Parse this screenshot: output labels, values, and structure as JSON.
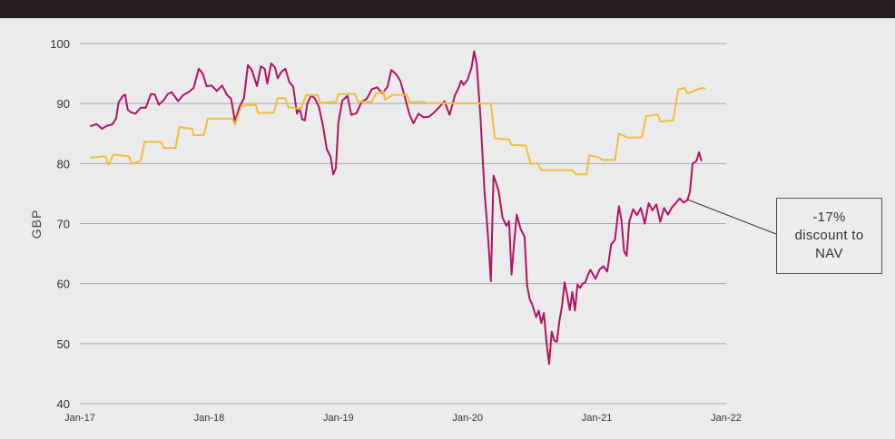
{
  "chart_data": {
    "type": "line",
    "title": "",
    "xlabel": "",
    "ylabel": "GBP",
    "ylim": [
      40,
      100
    ],
    "yticks": [
      "40",
      "50",
      "60",
      "70",
      "80",
      "90",
      "100"
    ],
    "xlim": [
      2017.0,
      2022.0
    ],
    "xticks": [
      {
        "label": "Jan-17",
        "x": 2017.0
      },
      {
        "label": "Jan-18",
        "x": 2018.0
      },
      {
        "label": "Jan-19",
        "x": 2019.0
      },
      {
        "label": "Jan-20",
        "x": 2020.0
      },
      {
        "label": "Jan-21",
        "x": 2021.0
      },
      {
        "label": "Jan-22",
        "x": 2022.0
      }
    ],
    "grid": "horizontal",
    "series": [
      {
        "color": "#b5135f",
        "points": [
          [
            2017.08,
            86.2
          ],
          [
            2017.13,
            86.6
          ],
          [
            2017.17,
            85.8
          ],
          [
            2017.21,
            86.3
          ],
          [
            2017.25,
            86.5
          ],
          [
            2017.28,
            87.5
          ],
          [
            2017.3,
            90.2
          ],
          [
            2017.33,
            91.2
          ],
          [
            2017.35,
            91.5
          ],
          [
            2017.37,
            89.0
          ],
          [
            2017.39,
            88.6
          ],
          [
            2017.43,
            88.3
          ],
          [
            2017.47,
            89.3
          ],
          [
            2017.51,
            89.3
          ],
          [
            2017.55,
            91.6
          ],
          [
            2017.58,
            91.5
          ],
          [
            2017.61,
            89.8
          ],
          [
            2017.65,
            90.6
          ],
          [
            2017.68,
            91.6
          ],
          [
            2017.71,
            91.9
          ],
          [
            2017.76,
            90.4
          ],
          [
            2017.8,
            91.4
          ],
          [
            2017.84,
            91.9
          ],
          [
            2017.88,
            92.6
          ],
          [
            2017.92,
            95.8
          ],
          [
            2017.95,
            95.0
          ],
          [
            2017.98,
            92.9
          ],
          [
            2018.02,
            93.0
          ],
          [
            2018.06,
            92.1
          ],
          [
            2018.1,
            93.0
          ],
          [
            2018.14,
            91.4
          ],
          [
            2018.17,
            90.8
          ],
          [
            2018.2,
            87.0
          ],
          [
            2018.23,
            89.2
          ],
          [
            2018.27,
            90.9
          ],
          [
            2018.3,
            96.4
          ],
          [
            2018.33,
            95.6
          ],
          [
            2018.35,
            94.3
          ],
          [
            2018.37,
            92.9
          ],
          [
            2018.4,
            96.2
          ],
          [
            2018.43,
            95.8
          ],
          [
            2018.45,
            93.3
          ],
          [
            2018.48,
            96.7
          ],
          [
            2018.51,
            96.0
          ],
          [
            2018.53,
            94.2
          ],
          [
            2018.56,
            95.3
          ],
          [
            2018.59,
            95.8
          ],
          [
            2018.62,
            93.6
          ],
          [
            2018.65,
            92.8
          ],
          [
            2018.68,
            88.3
          ],
          [
            2018.7,
            89.2
          ],
          [
            2018.72,
            87.4
          ],
          [
            2018.74,
            87.2
          ],
          [
            2018.76,
            90.0
          ],
          [
            2018.79,
            91.4
          ],
          [
            2018.82,
            90.8
          ],
          [
            2018.85,
            89.4
          ],
          [
            2018.88,
            86.4
          ],
          [
            2018.91,
            82.4
          ],
          [
            2018.94,
            81.1
          ],
          [
            2018.96,
            78.2
          ],
          [
            2018.98,
            79.2
          ],
          [
            2019.0,
            86.8
          ],
          [
            2019.03,
            90.5
          ],
          [
            2019.07,
            91.3
          ],
          [
            2019.1,
            88.1
          ],
          [
            2019.14,
            88.4
          ],
          [
            2019.18,
            90.3
          ],
          [
            2019.22,
            90.8
          ],
          [
            2019.26,
            92.4
          ],
          [
            2019.3,
            92.7
          ],
          [
            2019.34,
            91.7
          ],
          [
            2019.38,
            92.8
          ],
          [
            2019.41,
            95.6
          ],
          [
            2019.45,
            94.8
          ],
          [
            2019.48,
            93.7
          ],
          [
            2019.51,
            91.4
          ],
          [
            2019.55,
            88.2
          ],
          [
            2019.58,
            86.7
          ],
          [
            2019.62,
            88.3
          ],
          [
            2019.66,
            87.7
          ],
          [
            2019.7,
            87.8
          ],
          [
            2019.74,
            88.5
          ],
          [
            2019.78,
            89.4
          ],
          [
            2019.82,
            90.4
          ],
          [
            2019.86,
            88.1
          ],
          [
            2019.9,
            91.3
          ],
          [
            2019.93,
            92.6
          ],
          [
            2019.95,
            93.8
          ],
          [
            2019.97,
            93.1
          ],
          [
            2020.0,
            94.0
          ],
          [
            2020.03,
            96.0
          ],
          [
            2020.05,
            98.7
          ],
          [
            2020.07,
            96.6
          ],
          [
            2020.1,
            87.6
          ],
          [
            2020.13,
            75.5
          ],
          [
            2020.15,
            70.0
          ],
          [
            2020.16,
            67.0
          ],
          [
            2020.18,
            60.4
          ],
          [
            2020.2,
            78.0
          ],
          [
            2020.22,
            76.8
          ],
          [
            2020.24,
            75.4
          ],
          [
            2020.27,
            71.0
          ],
          [
            2020.3,
            69.6
          ],
          [
            2020.32,
            70.4
          ],
          [
            2020.34,
            61.5
          ],
          [
            2020.36,
            67.0
          ],
          [
            2020.38,
            71.5
          ],
          [
            2020.41,
            69.1
          ],
          [
            2020.44,
            67.8
          ],
          [
            2020.46,
            59.7
          ],
          [
            2020.48,
            57.4
          ],
          [
            2020.5,
            56.5
          ],
          [
            2020.53,
            54.4
          ],
          [
            2020.55,
            55.5
          ],
          [
            2020.57,
            53.4
          ],
          [
            2020.59,
            55.1
          ],
          [
            2020.61,
            50.2
          ],
          [
            2020.63,
            46.6
          ],
          [
            2020.65,
            52.0
          ],
          [
            2020.67,
            50.5
          ],
          [
            2020.69,
            50.3
          ],
          [
            2020.71,
            53.8
          ],
          [
            2020.73,
            56.3
          ],
          [
            2020.75,
            60.2
          ],
          [
            2020.77,
            58.1
          ],
          [
            2020.79,
            55.6
          ],
          [
            2020.81,
            58.6
          ],
          [
            2020.83,
            55.5
          ],
          [
            2020.85,
            59.8
          ],
          [
            2020.87,
            59.3
          ],
          [
            2020.89,
            60.0
          ],
          [
            2020.91,
            60.2
          ],
          [
            2020.93,
            61.4
          ],
          [
            2020.95,
            62.3
          ],
          [
            2020.97,
            61.5
          ],
          [
            2020.99,
            60.8
          ],
          [
            2021.02,
            62.3
          ],
          [
            2021.05,
            62.9
          ],
          [
            2021.08,
            62.0
          ],
          [
            2021.11,
            66.5
          ],
          [
            2021.14,
            67.3
          ],
          [
            2021.17,
            72.9
          ],
          [
            2021.19,
            70.5
          ],
          [
            2021.21,
            65.4
          ],
          [
            2021.23,
            64.6
          ],
          [
            2021.25,
            70.3
          ],
          [
            2021.28,
            72.4
          ],
          [
            2021.31,
            71.4
          ],
          [
            2021.34,
            72.6
          ],
          [
            2021.37,
            70.0
          ],
          [
            2021.4,
            73.4
          ],
          [
            2021.43,
            72.2
          ],
          [
            2021.46,
            73.2
          ],
          [
            2021.49,
            70.3
          ],
          [
            2021.52,
            72.6
          ],
          [
            2021.55,
            71.5
          ],
          [
            2021.58,
            72.7
          ],
          [
            2021.61,
            73.4
          ],
          [
            2021.64,
            74.2
          ],
          [
            2021.67,
            73.5
          ],
          [
            2021.7,
            73.9
          ],
          [
            2021.72,
            75.3
          ],
          [
            2021.74,
            80.0
          ],
          [
            2021.77,
            80.4
          ],
          [
            2021.79,
            81.9
          ],
          [
            2021.81,
            80.4
          ]
        ]
      },
      {
        "color": "#f2be3c",
        "points": [
          [
            2017.08,
            81.0
          ],
          [
            2017.2,
            81.2
          ],
          [
            2017.22,
            79.8
          ],
          [
            2017.26,
            81.5
          ],
          [
            2017.38,
            81.2
          ],
          [
            2017.4,
            80.0
          ],
          [
            2017.47,
            80.4
          ],
          [
            2017.5,
            83.6
          ],
          [
            2017.63,
            83.6
          ],
          [
            2017.65,
            82.6
          ],
          [
            2017.74,
            82.6
          ],
          [
            2017.77,
            86.1
          ],
          [
            2017.87,
            85.8
          ],
          [
            2017.88,
            84.7
          ],
          [
            2017.96,
            84.8
          ],
          [
            2017.99,
            87.5
          ],
          [
            2018.18,
            87.5
          ],
          [
            2018.2,
            86.5
          ],
          [
            2018.25,
            89.6
          ],
          [
            2018.36,
            89.8
          ],
          [
            2018.38,
            88.4
          ],
          [
            2018.5,
            88.5
          ],
          [
            2018.53,
            90.9
          ],
          [
            2018.59,
            90.9
          ],
          [
            2018.61,
            89.4
          ],
          [
            2018.71,
            89.1
          ],
          [
            2018.75,
            91.4
          ],
          [
            2018.84,
            91.4
          ],
          [
            2018.86,
            90.1
          ],
          [
            2018.98,
            90.3
          ],
          [
            2019.0,
            91.6
          ],
          [
            2019.13,
            91.6
          ],
          [
            2019.15,
            90.3
          ],
          [
            2019.26,
            90.3
          ],
          [
            2019.29,
            91.6
          ],
          [
            2019.35,
            92.0
          ],
          [
            2019.36,
            90.6
          ],
          [
            2019.42,
            91.4
          ],
          [
            2019.53,
            91.5
          ],
          [
            2019.55,
            90.2
          ],
          [
            2019.66,
            90.3
          ],
          [
            2019.68,
            90.1
          ],
          [
            2020.18,
            90.0
          ],
          [
            2020.21,
            84.2
          ],
          [
            2020.32,
            84.0
          ],
          [
            2020.34,
            83.1
          ],
          [
            2020.45,
            83.0
          ],
          [
            2020.47,
            81.3
          ],
          [
            2020.49,
            79.9
          ],
          [
            2020.54,
            80.1
          ],
          [
            2020.57,
            78.9
          ],
          [
            2020.81,
            78.9
          ],
          [
            2020.84,
            78.2
          ],
          [
            2020.92,
            78.2
          ],
          [
            2020.94,
            81.4
          ],
          [
            2021.02,
            81.0
          ],
          [
            2021.04,
            80.6
          ],
          [
            2021.14,
            80.6
          ],
          [
            2021.17,
            85.0
          ],
          [
            2021.24,
            84.3
          ],
          [
            2021.35,
            84.4
          ],
          [
            2021.38,
            87.9
          ],
          [
            2021.47,
            88.2
          ],
          [
            2021.49,
            87.0
          ],
          [
            2021.59,
            87.2
          ],
          [
            2021.63,
            92.4
          ],
          [
            2021.68,
            92.6
          ],
          [
            2021.7,
            91.7
          ],
          [
            2021.81,
            92.6
          ],
          [
            2021.84,
            92.5
          ]
        ]
      }
    ],
    "annotation": {
      "lines": [
        "-17%",
        "discount to",
        "NAV"
      ],
      "point": [
        2021.7,
        74.0
      ]
    }
  }
}
